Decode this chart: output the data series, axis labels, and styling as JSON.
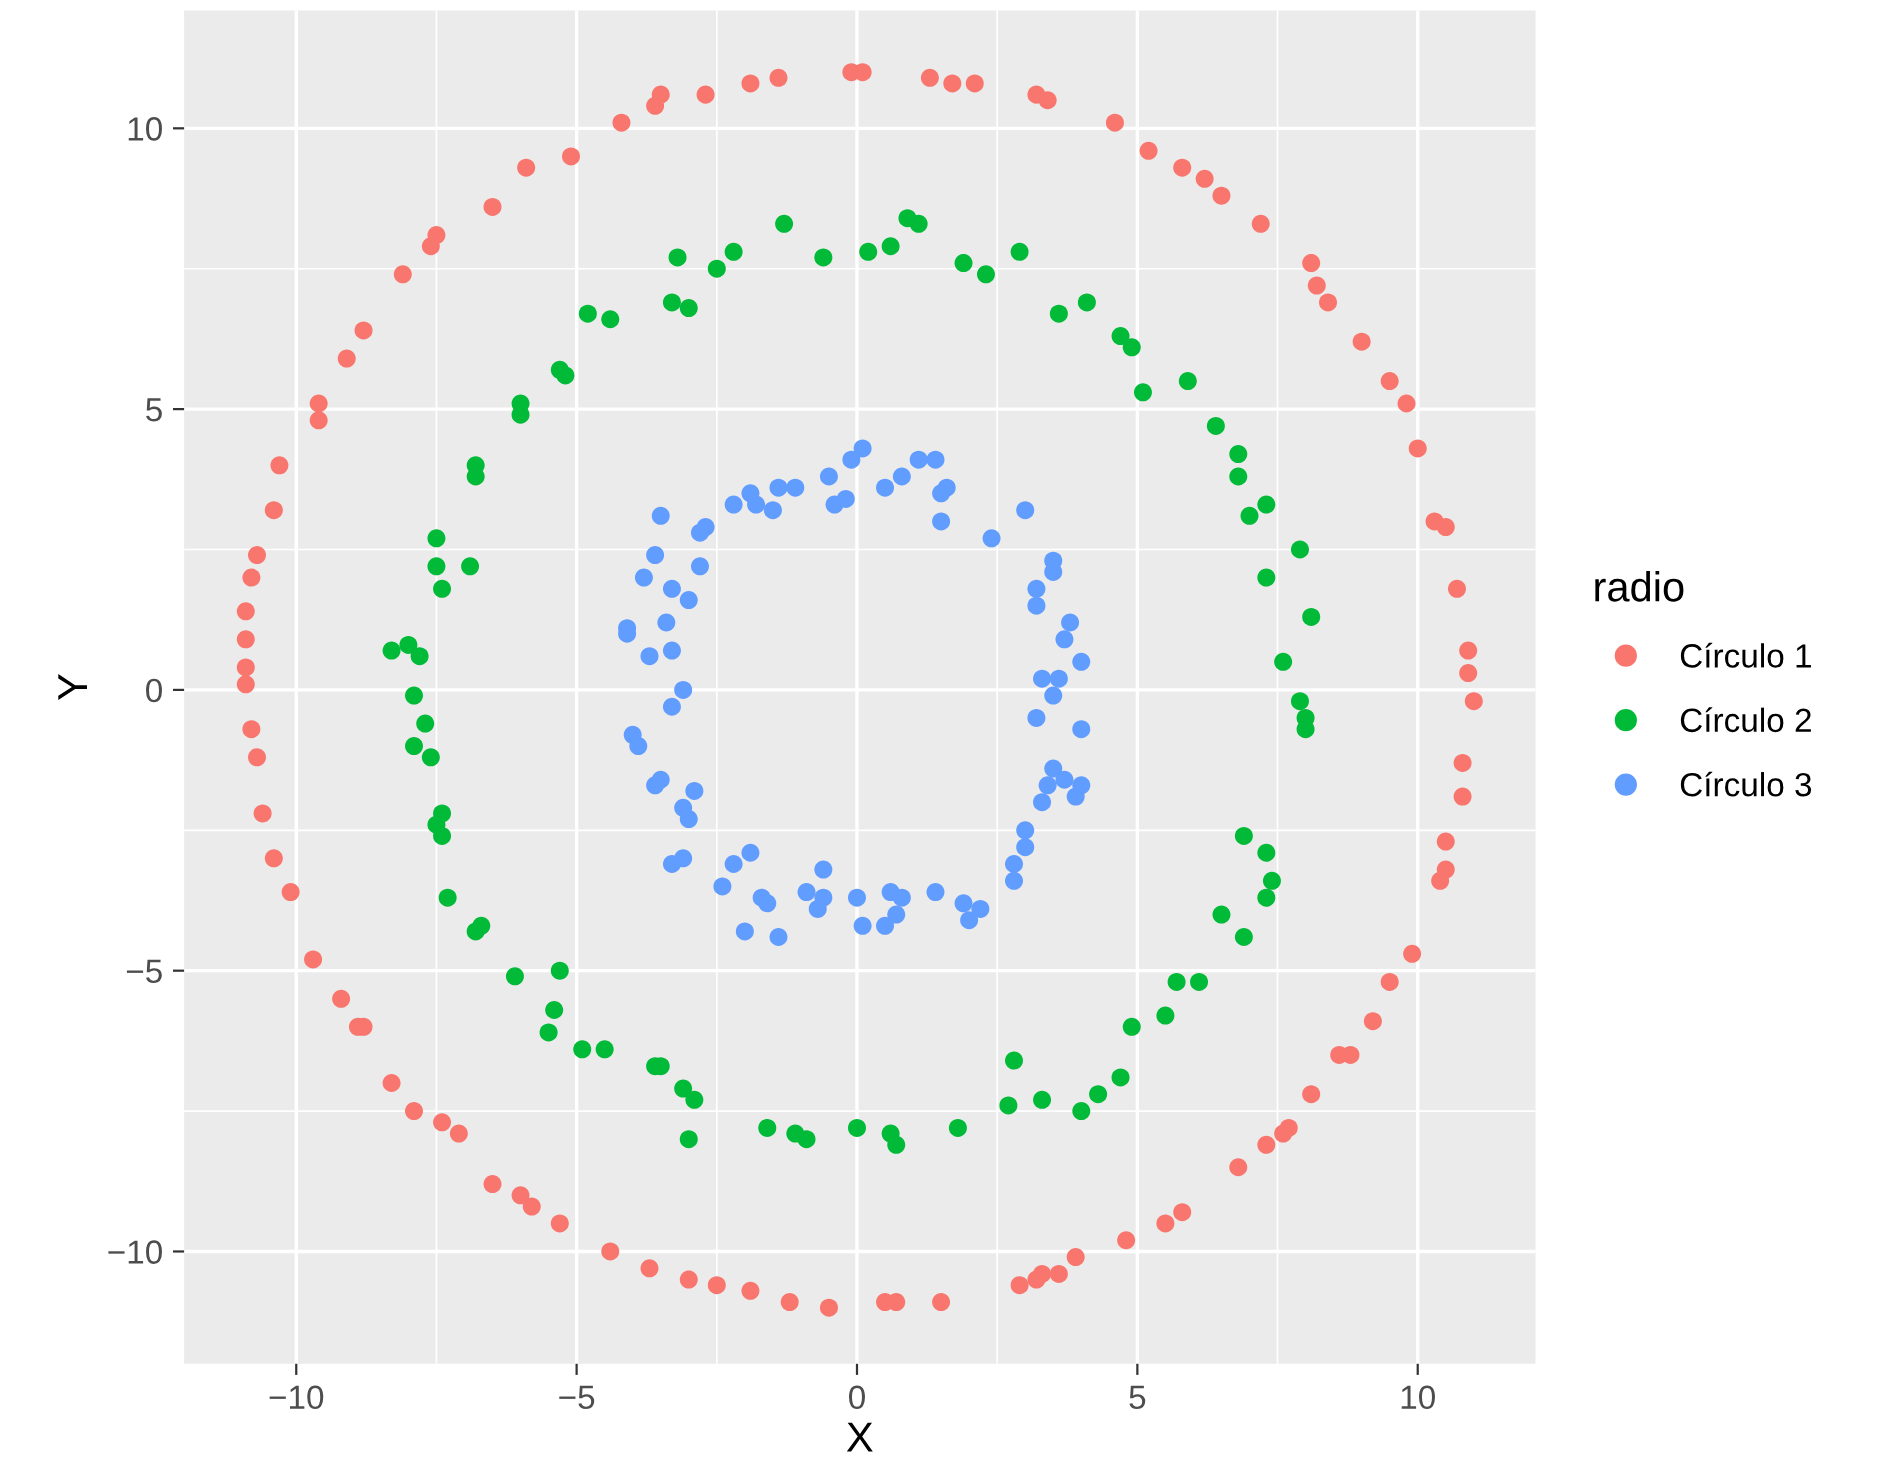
{
  "chart_data": {
    "type": "scatter",
    "xlabel": "X",
    "ylabel": "Y",
    "legend_title": "radio",
    "legend": "right",
    "grid": true,
    "marker": "circle",
    "xlim": [
      -12,
      12.1
    ],
    "ylim": [
      -12,
      12.1
    ],
    "xticks": [
      {
        "value": -10,
        "label": "−10"
      },
      {
        "value": -5,
        "label": "−5"
      },
      0,
      5,
      10
    ],
    "yticks": [
      {
        "value": -10,
        "label": "−10"
      },
      {
        "value": -5,
        "label": "−5"
      },
      0,
      5,
      10
    ],
    "series": [
      {
        "name": "Círculo 1",
        "color": "#f8766d",
        "x": [
          -0.1,
          0.1,
          1.3,
          1.7,
          2.1,
          3.2,
          3.4,
          4.6,
          5.2,
          5.8,
          6.2,
          6.5,
          7.2,
          8.1,
          8.2,
          8.4,
          9.0,
          9.5,
          9.8,
          10.0,
          10.3,
          10.5,
          10.7,
          10.9,
          10.9,
          11.0,
          10.8,
          10.8,
          10.5,
          10.5,
          10.4,
          9.9,
          9.5,
          9.2,
          8.8,
          8.6,
          8.1,
          7.7,
          7.6,
          7.3,
          6.8,
          5.8,
          5.5,
          4.8,
          3.9,
          3.6,
          3.3,
          3.2,
          2.9,
          1.5,
          0.7,
          0.5,
          -0.5,
          -1.2,
          -1.9,
          -2.5,
          -3.0,
          -3.7,
          -4.4,
          -5.3,
          -5.8,
          -6.0,
          -6.5,
          -7.1,
          -7.4,
          -7.9,
          -8.3,
          -8.8,
          -8.9,
          -9.2,
          -9.7,
          -10.1,
          -10.4,
          -10.6,
          -10.7,
          -10.8,
          -10.9,
          -10.9,
          -10.9,
          -10.9,
          -10.8,
          -10.7,
          -10.4,
          -10.3,
          -9.6,
          -9.6,
          -9.1,
          -8.8,
          -8.1,
          -7.6,
          -7.5,
          -6.5,
          -5.9,
          -5.1,
          -4.2,
          -3.6,
          -3.5,
          -2.7,
          -1.9,
          -1.4
        ],
        "values": [
          11.0,
          11.0,
          10.9,
          10.8,
          10.8,
          10.6,
          10.5,
          10.1,
          9.6,
          9.3,
          9.1,
          8.8,
          8.3,
          7.6,
          7.2,
          6.9,
          6.2,
          5.5,
          5.1,
          4.3,
          3.0,
          2.9,
          1.8,
          0.7,
          0.3,
          -0.2,
          -1.3,
          -1.9,
          -2.7,
          -3.2,
          -3.4,
          -4.7,
          -5.2,
          -5.9,
          -6.5,
          -6.5,
          -7.2,
          -7.8,
          -7.9,
          -8.1,
          -8.5,
          -9.3,
          -9.5,
          -9.8,
          -10.1,
          -10.4,
          -10.4,
          -10.5,
          -10.6,
          -10.9,
          -10.9,
          -10.9,
          -11.0,
          -10.9,
          -10.7,
          -10.6,
          -10.5,
          -10.3,
          -10.0,
          -9.5,
          -9.2,
          -9.0,
          -8.8,
          -7.9,
          -7.7,
          -7.5,
          -7.0,
          -6.0,
          -6.0,
          -5.5,
          -4.8,
          -3.6,
          -3.0,
          -2.2,
          -1.2,
          -0.7,
          0.1,
          0.4,
          0.9,
          1.4,
          2.0,
          2.4,
          3.2,
          4.0,
          4.8,
          5.1,
          5.9,
          6.4,
          7.4,
          7.9,
          8.1,
          8.6,
          9.3,
          9.5,
          10.1,
          10.4,
          10.6,
          10.6,
          10.8,
          10.9
        ]
      },
      {
        "name": "Círculo 2",
        "color": "#00ba38",
        "x": [
          0.9,
          1.1,
          0.2,
          0.6,
          -0.6,
          -1.3,
          -2.2,
          -3.2,
          -3.0,
          -3.3,
          -2.5,
          -4.4,
          -4.8,
          -5.3,
          -5.2,
          -6.0,
          -6.0,
          -6.8,
          -6.8,
          -7.5,
          -7.5,
          -7.4,
          -6.9,
          -8.3,
          -8.0,
          -7.8,
          -7.9,
          -7.7,
          -7.9,
          -7.6,
          -7.4,
          -7.5,
          -7.4,
          -7.3,
          -6.8,
          -6.7,
          -6.1,
          -5.3,
          -5.4,
          -5.5,
          -4.9,
          -4.5,
          -3.6,
          -3.5,
          -3.1,
          -2.9,
          -3.0,
          -1.6,
          -1.1,
          -0.9,
          0.0,
          0.6,
          0.7,
          1.8,
          2.8,
          2.7,
          3.3,
          4.0,
          4.3,
          4.7,
          4.9,
          5.5,
          5.7,
          6.1,
          6.5,
          6.9,
          7.3,
          7.4,
          7.3,
          6.9,
          8.0,
          8.0,
          7.9,
          7.6,
          8.1,
          7.9,
          7.3,
          7.3,
          7.0,
          6.8,
          6.8,
          6.4,
          5.9,
          4.9,
          4.7,
          4.1,
          3.6,
          2.9,
          2.3,
          1.9,
          5.1
        ],
        "values": [
          8.4,
          8.3,
          7.8,
          7.9,
          7.7,
          8.3,
          7.8,
          7.7,
          6.8,
          6.9,
          7.5,
          6.6,
          6.7,
          5.7,
          5.6,
          5.1,
          4.9,
          4.0,
          3.8,
          2.7,
          2.2,
          1.8,
          2.2,
          0.7,
          0.8,
          0.6,
          -0.1,
          -0.6,
          -1.0,
          -1.2,
          -2.2,
          -2.4,
          -2.6,
          -3.7,
          -4.3,
          -4.2,
          -5.1,
          -5.0,
          -5.7,
          -6.1,
          -6.4,
          -6.4,
          -6.7,
          -6.7,
          -7.1,
          -7.3,
          -8.0,
          -7.8,
          -7.9,
          -8.0,
          -7.8,
          -7.9,
          -8.1,
          -7.8,
          -6.6,
          -7.4,
          -7.3,
          -7.5,
          -7.2,
          -6.9,
          -6.0,
          -5.8,
          -5.2,
          -5.2,
          -4.0,
          -4.4,
          -3.7,
          -3.4,
          -2.9,
          -2.6,
          -0.7,
          -0.5,
          -0.2,
          0.5,
          1.3,
          2.5,
          3.3,
          2.0,
          3.1,
          3.8,
          4.2,
          4.7,
          5.5,
          6.1,
          6.3,
          6.9,
          6.7,
          7.8,
          7.4,
          7.6,
          5.3
        ]
      },
      {
        "name": "Círculo 3",
        "color": "#619cff",
        "x": [
          0.1,
          -0.1,
          -0.5,
          -0.4,
          -0.2,
          -1.1,
          -1.4,
          -1.5,
          -1.8,
          -1.9,
          -2.2,
          -2.7,
          -2.8,
          -3.5,
          -3.6,
          -3.8,
          -2.8,
          -3.0,
          -3.3,
          -4.1,
          -4.1,
          -3.4,
          -3.7,
          -3.3,
          -3.1,
          -3.3,
          -4.0,
          -3.9,
          -3.6,
          -3.5,
          -3.1,
          -2.9,
          -3.0,
          -3.1,
          -3.3,
          -2.4,
          -2.2,
          -1.9,
          -1.7,
          -2.0,
          -1.4,
          -1.6,
          -0.9,
          -0.7,
          -0.6,
          -0.6,
          0.0,
          0.6,
          0.8,
          0.7,
          0.1,
          0.5,
          1.4,
          1.9,
          2.2,
          2.0,
          2.8,
          2.8,
          3.0,
          3.0,
          3.3,
          3.4,
          3.5,
          3.7,
          3.9,
          4.0,
          4.0,
          3.5,
          3.2,
          3.3,
          3.6,
          4.0,
          3.7,
          3.8,
          3.2,
          3.2,
          3.5,
          3.5,
          2.4,
          3.0,
          1.6,
          1.5,
          1.5,
          1.4,
          1.1,
          0.8,
          0.5
        ],
        "values": [
          4.3,
          4.1,
          3.8,
          3.3,
          3.4,
          3.6,
          3.6,
          3.2,
          3.3,
          3.5,
          3.3,
          2.9,
          2.8,
          3.1,
          2.4,
          2.0,
          2.2,
          1.6,
          1.8,
          1.1,
          1.0,
          1.2,
          0.6,
          0.7,
          0.0,
          -0.3,
          -0.8,
          -1.0,
          -1.7,
          -1.6,
          -2.1,
          -1.8,
          -2.3,
          -3.0,
          -3.1,
          -3.5,
          -3.1,
          -2.9,
          -3.7,
          -4.3,
          -4.4,
          -3.8,
          -3.6,
          -3.9,
          -3.7,
          -3.2,
          -3.7,
          -3.6,
          -3.7,
          -4.0,
          -4.2,
          -4.2,
          -3.6,
          -3.8,
          -3.9,
          -4.1,
          -3.4,
          -3.1,
          -2.8,
          -2.5,
          -2.0,
          -1.7,
          -1.4,
          -1.6,
          -1.9,
          -1.7,
          -0.7,
          -0.1,
          -0.5,
          0.2,
          0.2,
          0.5,
          0.9,
          1.2,
          1.5,
          1.8,
          2.1,
          2.3,
          2.7,
          3.2,
          3.6,
          3.0,
          3.5,
          4.1,
          4.1,
          3.8,
          3.6
        ]
      }
    ]
  }
}
